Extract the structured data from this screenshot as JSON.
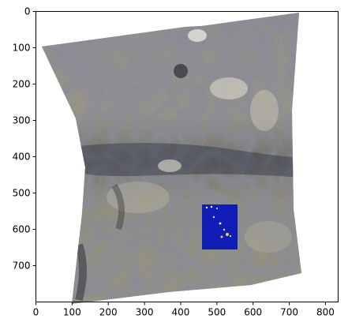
{
  "figure": {
    "xlim": [
      0,
      835
    ],
    "ylim": [
      0,
      800
    ],
    "x_ticks": [
      "0",
      "100",
      "200",
      "300",
      "400",
      "500",
      "600",
      "700",
      "800"
    ],
    "y_ticks": [
      "0",
      "100",
      "200",
      "300",
      "400",
      "500",
      "600",
      "700"
    ],
    "x_tick_values": [
      0,
      100,
      200,
      300,
      400,
      500,
      600,
      700,
      800
    ],
    "y_tick_values": [
      0,
      100,
      200,
      300,
      400,
      500,
      600,
      700
    ]
  },
  "image": {
    "description_type": "satellite-terrain",
    "background_color": "#ffffff",
    "terrain_colors": [
      "#7d7f9a",
      "#a8a58f",
      "#3d4150",
      "#d6d2c0"
    ],
    "overlay_color": "#0a1aa8",
    "overlay_range_x": [
      450,
      550
    ],
    "overlay_range_y": [
      525,
      650
    ]
  }
}
